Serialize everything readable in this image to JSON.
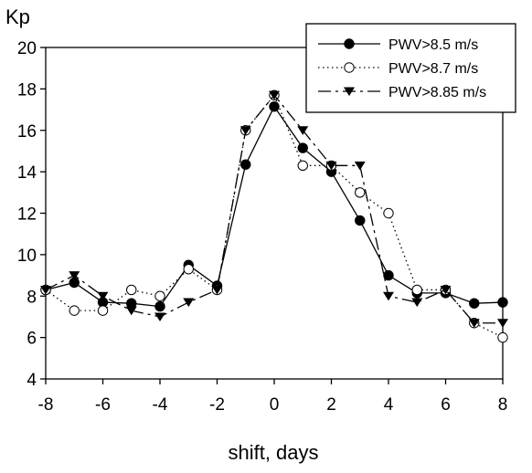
{
  "chart_data": {
    "type": "line",
    "title": "",
    "xlabel": "shift, days",
    "ylabel": "Kp",
    "xlim": [
      -8,
      8
    ],
    "ylim": [
      4,
      20
    ],
    "xticks": [
      "-8",
      "-6",
      "-4",
      "-2",
      "0",
      "2",
      "4",
      "6",
      "8"
    ],
    "yticks": [
      "4",
      "6",
      "8",
      "10",
      "12",
      "14",
      "16",
      "18",
      "20"
    ],
    "grid": false,
    "legend_position": "top-right",
    "x": [
      -8,
      -7,
      -6,
      -5,
      -4,
      -3,
      -2,
      -1,
      0,
      1,
      2,
      3,
      4,
      5,
      6,
      7,
      8
    ],
    "series": [
      {
        "name": "PWV>8.5 m/s",
        "style": "solid",
        "marker": "filled-circle",
        "color": "#000000",
        "values": [
          8.3,
          8.65,
          7.7,
          7.65,
          7.5,
          9.5,
          8.5,
          14.35,
          17.15,
          15.15,
          14.0,
          11.65,
          9.0,
          8.15,
          8.15,
          7.65,
          7.7
        ]
      },
      {
        "name": "PWV>8.7 m/s",
        "style": "dotted",
        "marker": "open-circle",
        "color": "#000000",
        "values": [
          8.3,
          7.3,
          7.3,
          8.3,
          8.0,
          9.3,
          8.3,
          16.0,
          17.7,
          14.3,
          14.3,
          13.0,
          12.0,
          8.3,
          8.3,
          6.7,
          6.0
        ]
      },
      {
        "name": "PWV>8.85 m/s",
        "style": "dashed",
        "marker": "filled-triangle-down",
        "color": "#000000",
        "values": [
          8.3,
          9.0,
          8.0,
          7.3,
          7.0,
          7.7,
          8.3,
          16.0,
          17.7,
          16.0,
          14.3,
          14.3,
          8.0,
          7.7,
          8.3,
          6.7,
          6.7
        ]
      }
    ]
  }
}
